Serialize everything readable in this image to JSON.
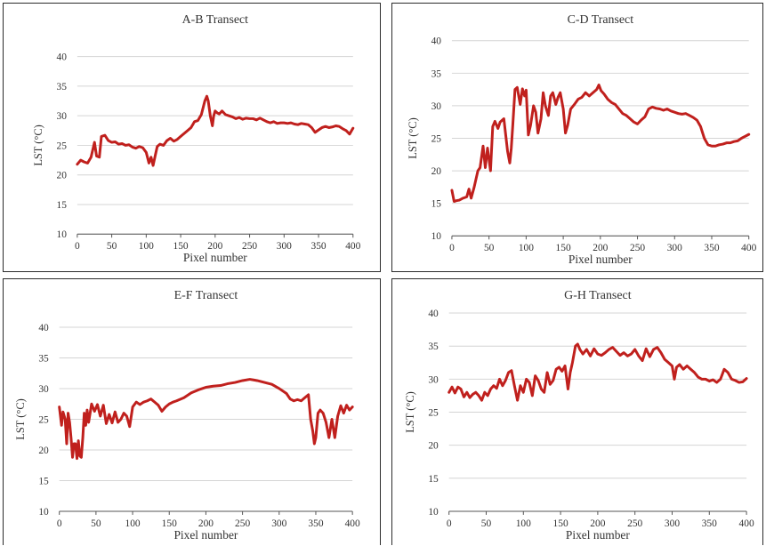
{
  "chart_data": [
    {
      "type": "line",
      "title": "A-B Transect",
      "xlabel": "Pixel number",
      "ylabel": "LST (°C)",
      "xlim": [
        0,
        400
      ],
      "ylim": [
        10,
        40
      ],
      "xticks": [
        0,
        50,
        100,
        150,
        200,
        250,
        300,
        350,
        400
      ],
      "yticks": [
        10,
        15,
        20,
        25,
        30,
        35,
        40
      ],
      "grid": true,
      "color": "#c0201d",
      "series": [
        {
          "x": [
            0,
            5,
            10,
            15,
            20,
            25,
            28,
            32,
            35,
            40,
            45,
            50,
            55,
            60,
            65,
            70,
            75,
            80,
            85,
            90,
            95,
            100,
            104,
            107,
            110,
            113,
            116,
            120,
            125,
            130,
            135,
            140,
            145,
            150,
            155,
            160,
            165,
            170,
            175,
            180,
            185,
            188,
            190,
            193,
            196,
            198,
            200,
            203,
            206,
            210,
            215,
            220,
            225,
            230,
            235,
            240,
            245,
            250,
            255,
            260,
            265,
            270,
            275,
            280,
            285,
            290,
            295,
            300,
            305,
            310,
            315,
            320,
            325,
            330,
            335,
            340,
            345,
            350,
            355,
            360,
            365,
            370,
            375,
            380,
            385,
            390,
            395,
            398,
            400
          ],
          "y": [
            21.8,
            22.5,
            22.2,
            22.0,
            23.0,
            25.5,
            23.2,
            23.0,
            26.5,
            26.7,
            25.8,
            25.5,
            25.6,
            25.2,
            25.3,
            25.0,
            25.1,
            24.7,
            24.5,
            24.8,
            24.6,
            23.8,
            22.0,
            23.0,
            21.6,
            23.2,
            24.8,
            25.2,
            25.0,
            25.8,
            26.2,
            25.7,
            26.0,
            26.5,
            27.0,
            27.5,
            28.0,
            29.0,
            29.2,
            30.2,
            32.5,
            33.3,
            32.5,
            30.0,
            28.3,
            30.0,
            30.8,
            30.5,
            30.3,
            30.8,
            30.2,
            30.0,
            29.8,
            29.5,
            29.7,
            29.4,
            29.6,
            29.5,
            29.5,
            29.3,
            29.6,
            29.3,
            29.0,
            28.8,
            29.0,
            28.7,
            28.8,
            28.8,
            28.7,
            28.8,
            28.6,
            28.5,
            28.7,
            28.6,
            28.5,
            28.0,
            27.2,
            27.6,
            28.0,
            28.2,
            28.0,
            28.1,
            28.3,
            28.2,
            27.8,
            27.5,
            26.9,
            27.5,
            27.9
          ]
        }
      ]
    },
    {
      "type": "line",
      "title": "C-D Transect",
      "xlabel": "Pixel number",
      "ylabel": "LST (°C)",
      "xlim": [
        0,
        400
      ],
      "ylim": [
        10,
        40
      ],
      "xticks": [
        0,
        50,
        100,
        150,
        200,
        250,
        300,
        350,
        400
      ],
      "yticks": [
        10,
        15,
        20,
        25,
        30,
        35,
        40
      ],
      "grid": true,
      "color": "#c0201d",
      "series": [
        {
          "x": [
            0,
            3,
            6,
            10,
            15,
            20,
            23,
            26,
            30,
            35,
            38,
            42,
            45,
            48,
            52,
            55,
            58,
            62,
            65,
            70,
            75,
            78,
            80,
            82,
            85,
            88,
            92,
            95,
            98,
            100,
            103,
            106,
            110,
            113,
            116,
            120,
            123,
            126,
            130,
            133,
            136,
            140,
            143,
            146,
            150,
            153,
            156,
            160,
            165,
            170,
            175,
            180,
            185,
            190,
            195,
            198,
            201,
            205,
            210,
            215,
            220,
            225,
            230,
            235,
            240,
            245,
            250,
            255,
            260,
            265,
            270,
            275,
            280,
            285,
            290,
            295,
            300,
            305,
            310,
            315,
            320,
            325,
            330,
            335,
            340,
            345,
            350,
            355,
            360,
            365,
            370,
            375,
            380,
            385,
            390,
            395,
            400
          ],
          "y": [
            17.0,
            15.3,
            15.4,
            15.5,
            15.8,
            16.0,
            17.2,
            15.8,
            17.5,
            20.0,
            20.5,
            23.8,
            20.5,
            23.5,
            20.0,
            26.8,
            27.6,
            26.5,
            27.5,
            28.0,
            23.0,
            21.2,
            23.5,
            27.0,
            32.5,
            32.8,
            30.2,
            32.6,
            31.5,
            32.4,
            25.5,
            27.0,
            30.0,
            29.0,
            25.8,
            28.0,
            32.0,
            30.0,
            28.5,
            31.5,
            32.0,
            30.2,
            31.3,
            32.0,
            29.5,
            25.8,
            27.0,
            29.5,
            30.2,
            31.0,
            31.3,
            32.0,
            31.5,
            32.0,
            32.5,
            33.2,
            32.3,
            31.8,
            31.0,
            30.5,
            30.2,
            29.5,
            28.8,
            28.5,
            28.0,
            27.5,
            27.2,
            27.8,
            28.3,
            29.5,
            29.8,
            29.6,
            29.5,
            29.3,
            29.5,
            29.2,
            29.0,
            28.8,
            28.7,
            28.8,
            28.5,
            28.2,
            27.8,
            26.8,
            25.0,
            24.0,
            23.8,
            23.8,
            24.0,
            24.1,
            24.3,
            24.3,
            24.5,
            24.6,
            25.0,
            25.3,
            25.6
          ]
        }
      ]
    },
    {
      "type": "line",
      "title": "E-F Transect",
      "xlabel": "Pixel number",
      "ylabel": "LST (°C)",
      "xlim": [
        0,
        400
      ],
      "ylim": [
        10,
        40
      ],
      "xticks": [
        0,
        50,
        100,
        150,
        200,
        250,
        300,
        350,
        400
      ],
      "yticks": [
        10,
        15,
        20,
        25,
        30,
        35,
        40
      ],
      "grid": true,
      "color": "#c0201d",
      "series": [
        {
          "x": [
            0,
            3,
            5,
            8,
            10,
            12,
            14,
            16,
            18,
            20,
            22,
            24,
            26,
            28,
            30,
            32,
            34,
            36,
            38,
            40,
            44,
            48,
            52,
            56,
            60,
            64,
            68,
            72,
            76,
            80,
            84,
            88,
            92,
            96,
            100,
            105,
            110,
            115,
            120,
            125,
            130,
            135,
            140,
            145,
            150,
            155,
            160,
            170,
            180,
            190,
            200,
            210,
            220,
            230,
            240,
            250,
            260,
            265,
            270,
            280,
            290,
            300,
            310,
            315,
            320,
            325,
            330,
            335,
            340,
            343,
            346,
            348,
            350,
            353,
            356,
            360,
            364,
            368,
            372,
            376,
            380,
            384,
            388,
            392,
            396,
            400
          ],
          "y": [
            27.0,
            24.0,
            26.2,
            25.0,
            21.0,
            26.0,
            24.5,
            22.0,
            18.8,
            21.0,
            21.0,
            18.6,
            21.5,
            19.0,
            18.8,
            22.0,
            26.0,
            24.0,
            26.5,
            24.5,
            27.5,
            26.3,
            27.4,
            25.5,
            27.3,
            24.3,
            25.8,
            24.4,
            26.2,
            24.5,
            25.0,
            26.0,
            25.5,
            23.8,
            27.0,
            27.8,
            27.4,
            27.8,
            28.0,
            28.3,
            27.8,
            27.3,
            26.3,
            27.0,
            27.5,
            27.8,
            28.0,
            28.5,
            29.3,
            29.8,
            30.2,
            30.4,
            30.5,
            30.8,
            31.0,
            31.3,
            31.5,
            31.4,
            31.3,
            31.0,
            30.7,
            30.0,
            29.2,
            28.3,
            28.0,
            28.2,
            28.0,
            28.5,
            29.0,
            25.0,
            23.0,
            21.0,
            22.0,
            26.0,
            26.5,
            26.0,
            24.5,
            22.0,
            25.0,
            22.0,
            25.5,
            27.2,
            26.0,
            27.3,
            26.5,
            27.0
          ]
        }
      ]
    },
    {
      "type": "line",
      "title": "G-H Transect",
      "xlabel": "Pixel number",
      "ylabel": "LST (°C)",
      "xlim": [
        0,
        400
      ],
      "ylim": [
        10,
        40
      ],
      "xticks": [
        0,
        50,
        100,
        150,
        200,
        250,
        300,
        350,
        400
      ],
      "yticks": [
        10,
        15,
        20,
        25,
        30,
        35,
        40
      ],
      "grid": true,
      "color": "#c0201d",
      "series": [
        {
          "x": [
            0,
            4,
            8,
            12,
            16,
            20,
            24,
            28,
            32,
            36,
            40,
            44,
            48,
            52,
            56,
            60,
            64,
            68,
            72,
            76,
            80,
            84,
            88,
            92,
            96,
            100,
            104,
            108,
            112,
            116,
            120,
            124,
            128,
            132,
            136,
            140,
            144,
            148,
            152,
            156,
            160,
            163,
            166,
            170,
            173,
            176,
            180,
            185,
            190,
            195,
            200,
            205,
            210,
            215,
            220,
            225,
            230,
            235,
            240,
            245,
            250,
            255,
            260,
            265,
            270,
            275,
            280,
            285,
            290,
            295,
            300,
            303,
            306,
            310,
            315,
            320,
            325,
            330,
            335,
            340,
            345,
            350,
            355,
            360,
            365,
            370,
            375,
            380,
            385,
            390,
            395,
            400
          ],
          "y": [
            28.0,
            28.8,
            27.9,
            28.8,
            28.5,
            27.3,
            28.0,
            27.2,
            27.7,
            28.0,
            27.5,
            26.8,
            28.0,
            27.5,
            28.5,
            29.0,
            28.6,
            30.0,
            29.0,
            29.8,
            31.0,
            31.3,
            29.0,
            26.8,
            29.0,
            28.0,
            30.0,
            29.5,
            27.5,
            30.5,
            29.8,
            28.5,
            28.0,
            31.0,
            29.2,
            29.8,
            31.5,
            31.8,
            31.2,
            32.0,
            28.5,
            31.0,
            32.5,
            35.0,
            35.3,
            34.5,
            33.8,
            34.5,
            33.5,
            34.6,
            33.8,
            33.6,
            34.0,
            34.5,
            34.8,
            34.2,
            33.6,
            34.0,
            33.5,
            33.8,
            34.5,
            33.5,
            32.8,
            34.6,
            33.4,
            34.5,
            34.8,
            34.0,
            33.0,
            32.5,
            32.0,
            30.0,
            31.8,
            32.2,
            31.5,
            32.0,
            31.5,
            31.0,
            30.3,
            30.0,
            30.0,
            29.7,
            29.9,
            29.5,
            30.0,
            31.5,
            31.0,
            30.0,
            29.8,
            29.5,
            29.6,
            30.1
          ]
        }
      ]
    }
  ]
}
